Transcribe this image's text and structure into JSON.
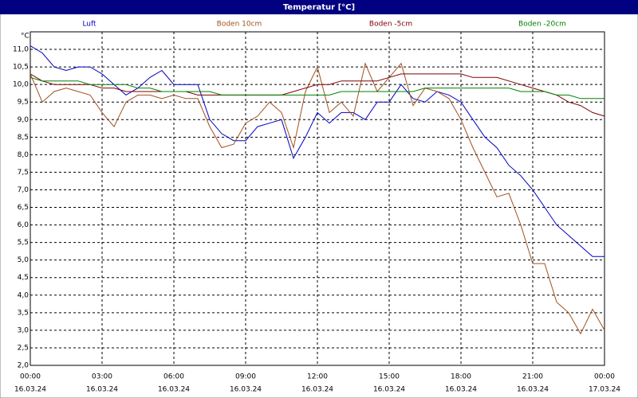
{
  "chart_data": {
    "type": "line",
    "title": "Temperatur [°C]",
    "y_unit": "°C",
    "x": [
      0,
      0.5,
      1,
      1.5,
      2,
      2.5,
      3,
      3.5,
      4,
      4.5,
      5,
      5.5,
      6,
      6.5,
      7,
      7.5,
      8,
      8.5,
      9,
      9.5,
      10,
      10.5,
      11,
      11.5,
      12,
      12.5,
      13,
      13.5,
      14,
      14.5,
      15,
      15.5,
      16,
      16.5,
      17,
      17.5,
      18,
      18.5,
      19,
      19.5,
      20,
      20.5,
      21,
      21.5,
      22,
      22.5,
      23,
      23.5,
      24
    ],
    "series": [
      {
        "name": "Luft",
        "color": "#0000c0",
        "values": [
          11.1,
          10.9,
          10.5,
          10.4,
          10.5,
          10.5,
          10.3,
          10.0,
          9.7,
          9.9,
          10.2,
          10.4,
          10.0,
          10.0,
          10.0,
          9.0,
          8.6,
          8.4,
          8.4,
          8.8,
          8.9,
          9.0,
          7.9,
          8.5,
          9.2,
          8.9,
          9.2,
          9.2,
          9.0,
          9.5,
          9.5,
          10.0,
          9.6,
          9.5,
          9.8,
          9.7,
          9.5,
          9.0,
          8.5,
          8.2,
          7.7,
          7.4,
          7.0,
          6.5,
          6.0,
          5.7,
          5.4,
          5.1,
          5.1
        ]
      },
      {
        "name": "Boden 10cm",
        "color": "#a0501e",
        "values": [
          10.3,
          9.5,
          9.8,
          9.9,
          9.8,
          9.7,
          9.2,
          8.8,
          9.5,
          9.7,
          9.7,
          9.6,
          9.7,
          9.6,
          9.6,
          8.8,
          8.2,
          8.3,
          8.9,
          9.1,
          9.5,
          9.2,
          8.2,
          9.8,
          10.5,
          9.2,
          9.5,
          9.1,
          10.6,
          9.8,
          10.2,
          10.6,
          9.4,
          9.9,
          9.8,
          9.6,
          9.0,
          8.2,
          7.5,
          6.8,
          6.9,
          6.0,
          4.9,
          4.9,
          3.8,
          3.5,
          2.9,
          3.6,
          3.0
        ]
      },
      {
        "name": "Boden -5cm",
        "color": "#800000",
        "values": [
          10.3,
          10.1,
          10.0,
          10.0,
          10.0,
          10.0,
          9.9,
          9.9,
          9.8,
          9.8,
          9.8,
          9.8,
          9.8,
          9.8,
          9.7,
          9.7,
          9.7,
          9.7,
          9.7,
          9.7,
          9.7,
          9.7,
          9.8,
          9.9,
          10.0,
          10.0,
          10.1,
          10.1,
          10.1,
          10.1,
          10.2,
          10.3,
          10.3,
          10.3,
          10.3,
          10.3,
          10.3,
          10.2,
          10.2,
          10.2,
          10.1,
          10.0,
          9.9,
          9.8,
          9.7,
          9.5,
          9.4,
          9.2,
          9.1
        ]
      },
      {
        "name": "Boden -20cm",
        "color": "#008000",
        "values": [
          10.2,
          10.1,
          10.1,
          10.1,
          10.1,
          10.0,
          10.0,
          10.0,
          10.0,
          9.9,
          9.9,
          9.8,
          9.8,
          9.8,
          9.8,
          9.8,
          9.7,
          9.7,
          9.7,
          9.7,
          9.7,
          9.7,
          9.7,
          9.7,
          9.7,
          9.7,
          9.8,
          9.8,
          9.8,
          9.8,
          9.8,
          9.8,
          9.8,
          9.9,
          9.9,
          9.9,
          9.9,
          9.9,
          9.9,
          9.9,
          9.9,
          9.8,
          9.8,
          9.8,
          9.7,
          9.7,
          9.6,
          9.6,
          9.6
        ]
      }
    ],
    "xlim": [
      0,
      24
    ],
    "xticks": [
      {
        "value": 0,
        "label": "00:00"
      },
      {
        "value": 3,
        "label": "03:00"
      },
      {
        "value": 6,
        "label": "06:00"
      },
      {
        "value": 9,
        "label": "09:00"
      },
      {
        "value": 12,
        "label": "12:00"
      },
      {
        "value": 15,
        "label": "15:00"
      },
      {
        "value": 18,
        "label": "18:00"
      },
      {
        "value": 21,
        "label": "21:00"
      },
      {
        "value": 24,
        "label": "00:00"
      }
    ],
    "xtick_dates": [
      "16.03.24",
      "16.03.24",
      "16.03.24",
      "16.03.24",
      "16.03.24",
      "16.03.24",
      "16.03.24",
      "16.03.24",
      "17.03.24"
    ],
    "ylim": [
      2,
      11.5
    ],
    "yticks": [
      {
        "value": 2,
        "label": "2,0"
      },
      {
        "value": 2.5,
        "label": "2,5"
      },
      {
        "value": 3,
        "label": "3,0"
      },
      {
        "value": 3.5,
        "label": "3,5"
      },
      {
        "value": 4,
        "label": "4,0"
      },
      {
        "value": 4.5,
        "label": "4,5"
      },
      {
        "value": 5,
        "label": "5,0"
      },
      {
        "value": 5.5,
        "label": "5,5"
      },
      {
        "value": 6,
        "label": "6,0"
      },
      {
        "value": 6.5,
        "label": "6,5"
      },
      {
        "value": 7,
        "label": "7,0"
      },
      {
        "value": 7.5,
        "label": "7,5"
      },
      {
        "value": 8,
        "label": "8,0"
      },
      {
        "value": 8.5,
        "label": "8,5"
      },
      {
        "value": 9,
        "label": "9,0"
      },
      {
        "value": 9.5,
        "label": "9,5"
      },
      {
        "value": 10,
        "label": "10,0"
      },
      {
        "value": 10.5,
        "label": "10,5"
      },
      {
        "value": 11,
        "label": "11,0"
      }
    ],
    "grid": true
  }
}
